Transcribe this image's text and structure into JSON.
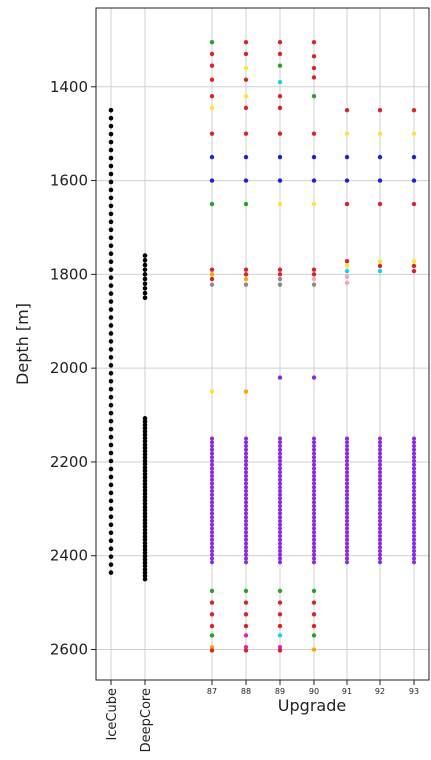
{
  "chart_data": {
    "type": "scatter",
    "ylabel": "Depth [m]",
    "xlabel": "Upgrade",
    "ylim": [
      2665,
      1232
    ],
    "yticks": [
      "1400",
      "1600",
      "1800",
      "2000",
      "2200",
      "2400",
      "2600"
    ],
    "ytick_values": [
      1400,
      1600,
      1800,
      2000,
      2200,
      2400,
      2600
    ],
    "grid": true,
    "legend": "none",
    "categories": [
      "IceCube",
      "DeepCore",
      "87",
      "88",
      "89",
      "90",
      "91",
      "92",
      "93"
    ],
    "palette": {
      "black": "#000000",
      "red": "#d62728",
      "green": "#2ca02c",
      "yellow": "#ffe33a",
      "orange": "#ffa500",
      "blue": "#1f1fdc",
      "cyan": "#17d4e6",
      "purple": "#8a2be2",
      "magenta": "#e020d0",
      "gray": "#8c8c8c",
      "pink": "#f3a6b8"
    },
    "series": [
      {
        "category": "IceCube",
        "groups": [
          {
            "from": 1450,
            "to": 2450,
            "step": 17,
            "color": "black"
          }
        ]
      },
      {
        "category": "DeepCore",
        "groups": [
          {
            "from": 1760,
            "to": 1850,
            "step": 10,
            "color": "black"
          },
          {
            "from": 2107,
            "to": 2450,
            "step": 7,
            "color": "black"
          }
        ]
      },
      {
        "category": "87",
        "points": [
          [
            1305,
            "green"
          ],
          [
            1330,
            "red"
          ],
          [
            1355,
            "red"
          ],
          [
            1385,
            "red"
          ],
          [
            1420,
            "red"
          ],
          [
            1445,
            "yellow"
          ],
          [
            1500,
            "red"
          ],
          [
            1550,
            "blue"
          ],
          [
            1600,
            "blue"
          ],
          [
            1650,
            "green"
          ],
          [
            1790,
            "red"
          ],
          [
            1800,
            "orange"
          ],
          [
            1810,
            "red"
          ],
          [
            1822,
            "gray"
          ],
          [
            2050,
            "yellow"
          ],
          [
            2475,
            "green"
          ],
          [
            2500,
            "red"
          ],
          [
            2525,
            "red"
          ],
          [
            2550,
            "red"
          ],
          [
            2570,
            "green"
          ],
          [
            2595,
            "orange"
          ],
          [
            2602,
            "red"
          ]
        ],
        "groups": [
          {
            "from": 2150,
            "to": 2420,
            "step": 8,
            "color": "purple"
          }
        ]
      },
      {
        "category": "88",
        "points": [
          [
            1305,
            "red"
          ],
          [
            1330,
            "red"
          ],
          [
            1360,
            "yellow"
          ],
          [
            1385,
            "red"
          ],
          [
            1420,
            "yellow"
          ],
          [
            1445,
            "red"
          ],
          [
            1500,
            "red"
          ],
          [
            1550,
            "blue"
          ],
          [
            1600,
            "blue"
          ],
          [
            1650,
            "green"
          ],
          [
            1790,
            "red"
          ],
          [
            1800,
            "red"
          ],
          [
            1810,
            "orange"
          ],
          [
            1822,
            "gray"
          ],
          [
            2050,
            "orange"
          ],
          [
            2475,
            "green"
          ],
          [
            2500,
            "red"
          ],
          [
            2525,
            "red"
          ],
          [
            2550,
            "red"
          ],
          [
            2570,
            "magenta"
          ],
          [
            2595,
            "magenta"
          ],
          [
            2602,
            "red"
          ]
        ],
        "groups": [
          {
            "from": 2150,
            "to": 2420,
            "step": 8,
            "color": "purple"
          }
        ]
      },
      {
        "category": "89",
        "points": [
          [
            1305,
            "red"
          ],
          [
            1330,
            "red"
          ],
          [
            1355,
            "green"
          ],
          [
            1390,
            "cyan"
          ],
          [
            1420,
            "red"
          ],
          [
            1445,
            "red"
          ],
          [
            1500,
            "red"
          ],
          [
            1550,
            "blue"
          ],
          [
            1600,
            "blue"
          ],
          [
            1650,
            "yellow"
          ],
          [
            1790,
            "red"
          ],
          [
            1800,
            "red"
          ],
          [
            1810,
            "gray"
          ],
          [
            1822,
            "gray"
          ],
          [
            2020,
            "purple"
          ],
          [
            2475,
            "green"
          ],
          [
            2500,
            "red"
          ],
          [
            2525,
            "red"
          ],
          [
            2550,
            "red"
          ],
          [
            2570,
            "cyan"
          ],
          [
            2595,
            "magenta"
          ],
          [
            2602,
            "red"
          ]
        ],
        "groups": [
          {
            "from": 2150,
            "to": 2420,
            "step": 8,
            "color": "purple"
          }
        ]
      },
      {
        "category": "90",
        "points": [
          [
            1305,
            "red"
          ],
          [
            1335,
            "red"
          ],
          [
            1360,
            "red"
          ],
          [
            1380,
            "red"
          ],
          [
            1420,
            "green"
          ],
          [
            1500,
            "red"
          ],
          [
            1550,
            "blue"
          ],
          [
            1600,
            "blue"
          ],
          [
            1650,
            "yellow"
          ],
          [
            1790,
            "red"
          ],
          [
            1800,
            "red"
          ],
          [
            1810,
            "pink"
          ],
          [
            1822,
            "gray"
          ],
          [
            2020,
            "purple"
          ],
          [
            2475,
            "green"
          ],
          [
            2500,
            "red"
          ],
          [
            2525,
            "red"
          ],
          [
            2550,
            "red"
          ],
          [
            2570,
            "green"
          ],
          [
            2600,
            "orange"
          ]
        ],
        "groups": [
          {
            "from": 2150,
            "to": 2420,
            "step": 8,
            "color": "purple"
          }
        ]
      },
      {
        "category": "91",
        "points": [
          [
            1450,
            "red"
          ],
          [
            1500,
            "yellow"
          ],
          [
            1550,
            "blue"
          ],
          [
            1600,
            "blue"
          ],
          [
            1650,
            "red"
          ],
          [
            1772,
            "red"
          ],
          [
            1782,
            "yellow"
          ],
          [
            1793,
            "cyan"
          ],
          [
            1805,
            "pink"
          ],
          [
            1818,
            "pink"
          ]
        ],
        "groups": [
          {
            "from": 2150,
            "to": 2420,
            "step": 8,
            "color": "purple"
          }
        ]
      },
      {
        "category": "92",
        "points": [
          [
            1450,
            "red"
          ],
          [
            1500,
            "yellow"
          ],
          [
            1550,
            "blue"
          ],
          [
            1600,
            "blue"
          ],
          [
            1650,
            "red"
          ],
          [
            1772,
            "yellow"
          ],
          [
            1782,
            "red"
          ],
          [
            1793,
            "cyan"
          ]
        ],
        "groups": [
          {
            "from": 2150,
            "to": 2420,
            "step": 8,
            "color": "purple"
          }
        ]
      },
      {
        "category": "93",
        "points": [
          [
            1450,
            "red"
          ],
          [
            1500,
            "yellow"
          ],
          [
            1550,
            "blue"
          ],
          [
            1600,
            "blue"
          ],
          [
            1650,
            "red"
          ],
          [
            1772,
            "yellow"
          ],
          [
            1782,
            "red"
          ],
          [
            1793,
            "red"
          ]
        ],
        "groups": [
          {
            "from": 2150,
            "to": 2420,
            "step": 8,
            "color": "purple"
          }
        ]
      }
    ]
  }
}
